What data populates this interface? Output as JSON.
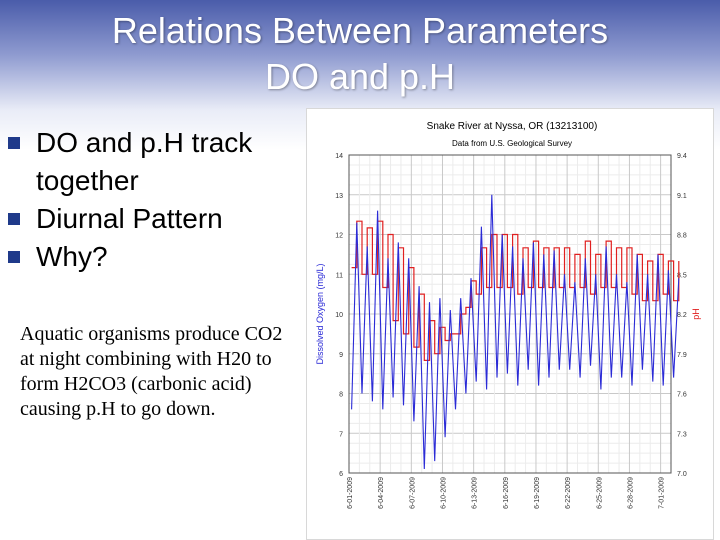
{
  "slide": {
    "title_line1": "Relations Between Parameters",
    "title_line2": "DO and p.H",
    "bullets": [
      "DO and p.H track together",
      "Diurnal Pattern",
      "Why?"
    ],
    "note": "Aquatic organisms produce CO2 at night combining with H20 to form H2CO3 (carbonic acid) causing p.H to go down."
  },
  "colors": {
    "bullet": "#1f3a8a",
    "do_series": "#2b2bd6",
    "ph_series": "#e02020",
    "grid": "#d9d9d9"
  },
  "chart_data": {
    "type": "line",
    "title": "Snake River at Nyssa, OR (13213100)",
    "subtitle": "Data from U.S. Geological Survey",
    "ylabel": "Dissolved Oxygen (mg/L)",
    "y2label": "pH",
    "ylim": [
      6,
      14
    ],
    "y2lim": [
      7.0,
      9.4
    ],
    "yticks": [
      "6",
      "7",
      "8",
      "9",
      "10",
      "11",
      "12",
      "13",
      "14"
    ],
    "y2ticks": [
      "7.0",
      "7.3",
      "7.6",
      "7.9",
      "8.2",
      "8.5",
      "8.8",
      "9.1",
      "9.4"
    ],
    "xlim": [
      0,
      31
    ],
    "xticks": [
      {
        "x": 0,
        "label": "6-01-2009"
      },
      {
        "x": 3,
        "label": "6-04-2009"
      },
      {
        "x": 6,
        "label": "6-07-2009"
      },
      {
        "x": 9,
        "label": "6-10-2009"
      },
      {
        "x": 12,
        "label": "6-13-2009"
      },
      {
        "x": 15,
        "label": "6-16-2009"
      },
      {
        "x": 18,
        "label": "6-19-2009"
      },
      {
        "x": 21,
        "label": "6-22-2009"
      },
      {
        "x": 24,
        "label": "6-25-2009"
      },
      {
        "x": 27,
        "label": "6-28-2009"
      },
      {
        "x": 30,
        "label": "7-01-2009"
      }
    ],
    "grid": true,
    "series": [
      {
        "axis": "left",
        "day_max": [
          12.3,
          11.7,
          12.6,
          11.4,
          11.8,
          11.4,
          10.7,
          10.3,
          10.4,
          10.1,
          10.4,
          10.9,
          12.2,
          13.0,
          12.0,
          11.7,
          11.4,
          11.8,
          11.5,
          11.6,
          11.0,
          10.8,
          11.4,
          11.0,
          11.7,
          11.0,
          10.8,
          11.5,
          11.0,
          11.5,
          11.1,
          10.9
        ],
        "day_min": [
          7.6,
          8.0,
          7.8,
          7.6,
          7.9,
          7.7,
          7.3,
          6.1,
          6.3,
          6.9,
          7.6,
          8.0,
          8.3,
          8.1,
          8.4,
          8.5,
          8.2,
          8.6,
          8.2,
          8.4,
          8.6,
          8.6,
          8.4,
          8.7,
          8.1,
          8.4,
          8.4,
          8.2,
          8.6,
          8.3,
          8.2,
          8.4
        ]
      },
      {
        "axis": "right",
        "day_max": [
          8.9,
          8.85,
          8.92,
          8.8,
          8.7,
          8.55,
          8.35,
          8.15,
          8.1,
          8.05,
          8.2,
          8.45,
          8.7,
          8.8,
          8.82,
          8.8,
          8.72,
          8.75,
          8.72,
          8.7,
          8.68,
          8.67,
          8.73,
          8.65,
          8.75,
          8.68,
          8.7,
          8.65,
          8.62,
          8.63,
          8.6,
          8.6
        ],
        "day_min": [
          8.55,
          8.5,
          8.5,
          8.4,
          8.15,
          8.05,
          7.95,
          7.85,
          7.9,
          8.0,
          8.05,
          8.25,
          8.35,
          8.4,
          8.4,
          8.38,
          8.35,
          8.4,
          8.38,
          8.4,
          8.38,
          8.4,
          8.42,
          8.35,
          8.4,
          8.38,
          8.42,
          8.35,
          8.3,
          8.32,
          8.33,
          8.3
        ]
      }
    ]
  }
}
